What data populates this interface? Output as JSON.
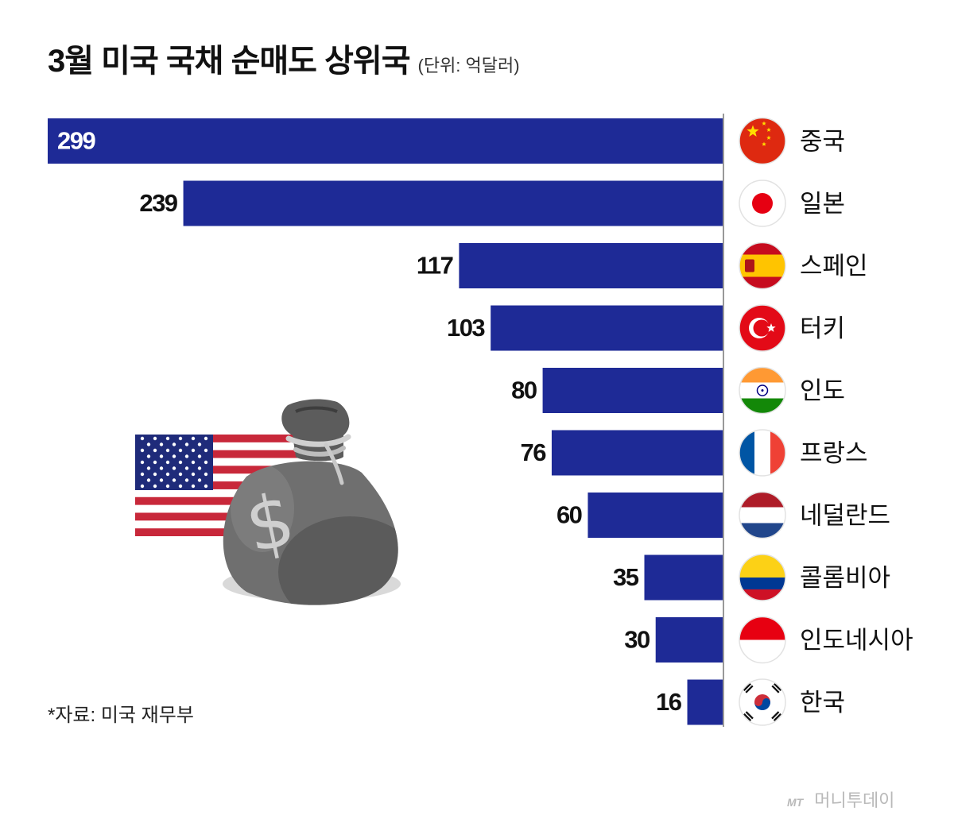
{
  "header": {
    "title": "3월 미국 국채 순매도 상위국",
    "unit": "(단위: 억달러)"
  },
  "chart_data": {
    "type": "bar",
    "orientation": "horizontal",
    "direction": "right-to-left",
    "categories": [
      "중국",
      "일본",
      "스페인",
      "터키",
      "인도",
      "프랑스",
      "네덜란드",
      "콜롬비아",
      "인도네시아",
      "한국"
    ],
    "values": [
      299,
      239,
      117,
      103,
      80,
      76,
      60,
      35,
      30,
      16
    ],
    "title": "3월 미국 국채 순매도 상위국",
    "unit": "억달러",
    "bar_color": "#1e2a96"
  },
  "flags": [
    "china-flag",
    "japan-flag",
    "spain-flag",
    "turkey-flag",
    "india-flag",
    "france-flag",
    "netherlands-flag",
    "colombia-flag",
    "indonesia-flag",
    "korea-flag"
  ],
  "illustration": {
    "flag": "usa-flag",
    "bag": "money-bag-icon",
    "symbol": "$"
  },
  "footer": {
    "source": "*자료: 미국 재무부",
    "watermark_brand": "MT",
    "watermark_name": "머니투데이"
  }
}
